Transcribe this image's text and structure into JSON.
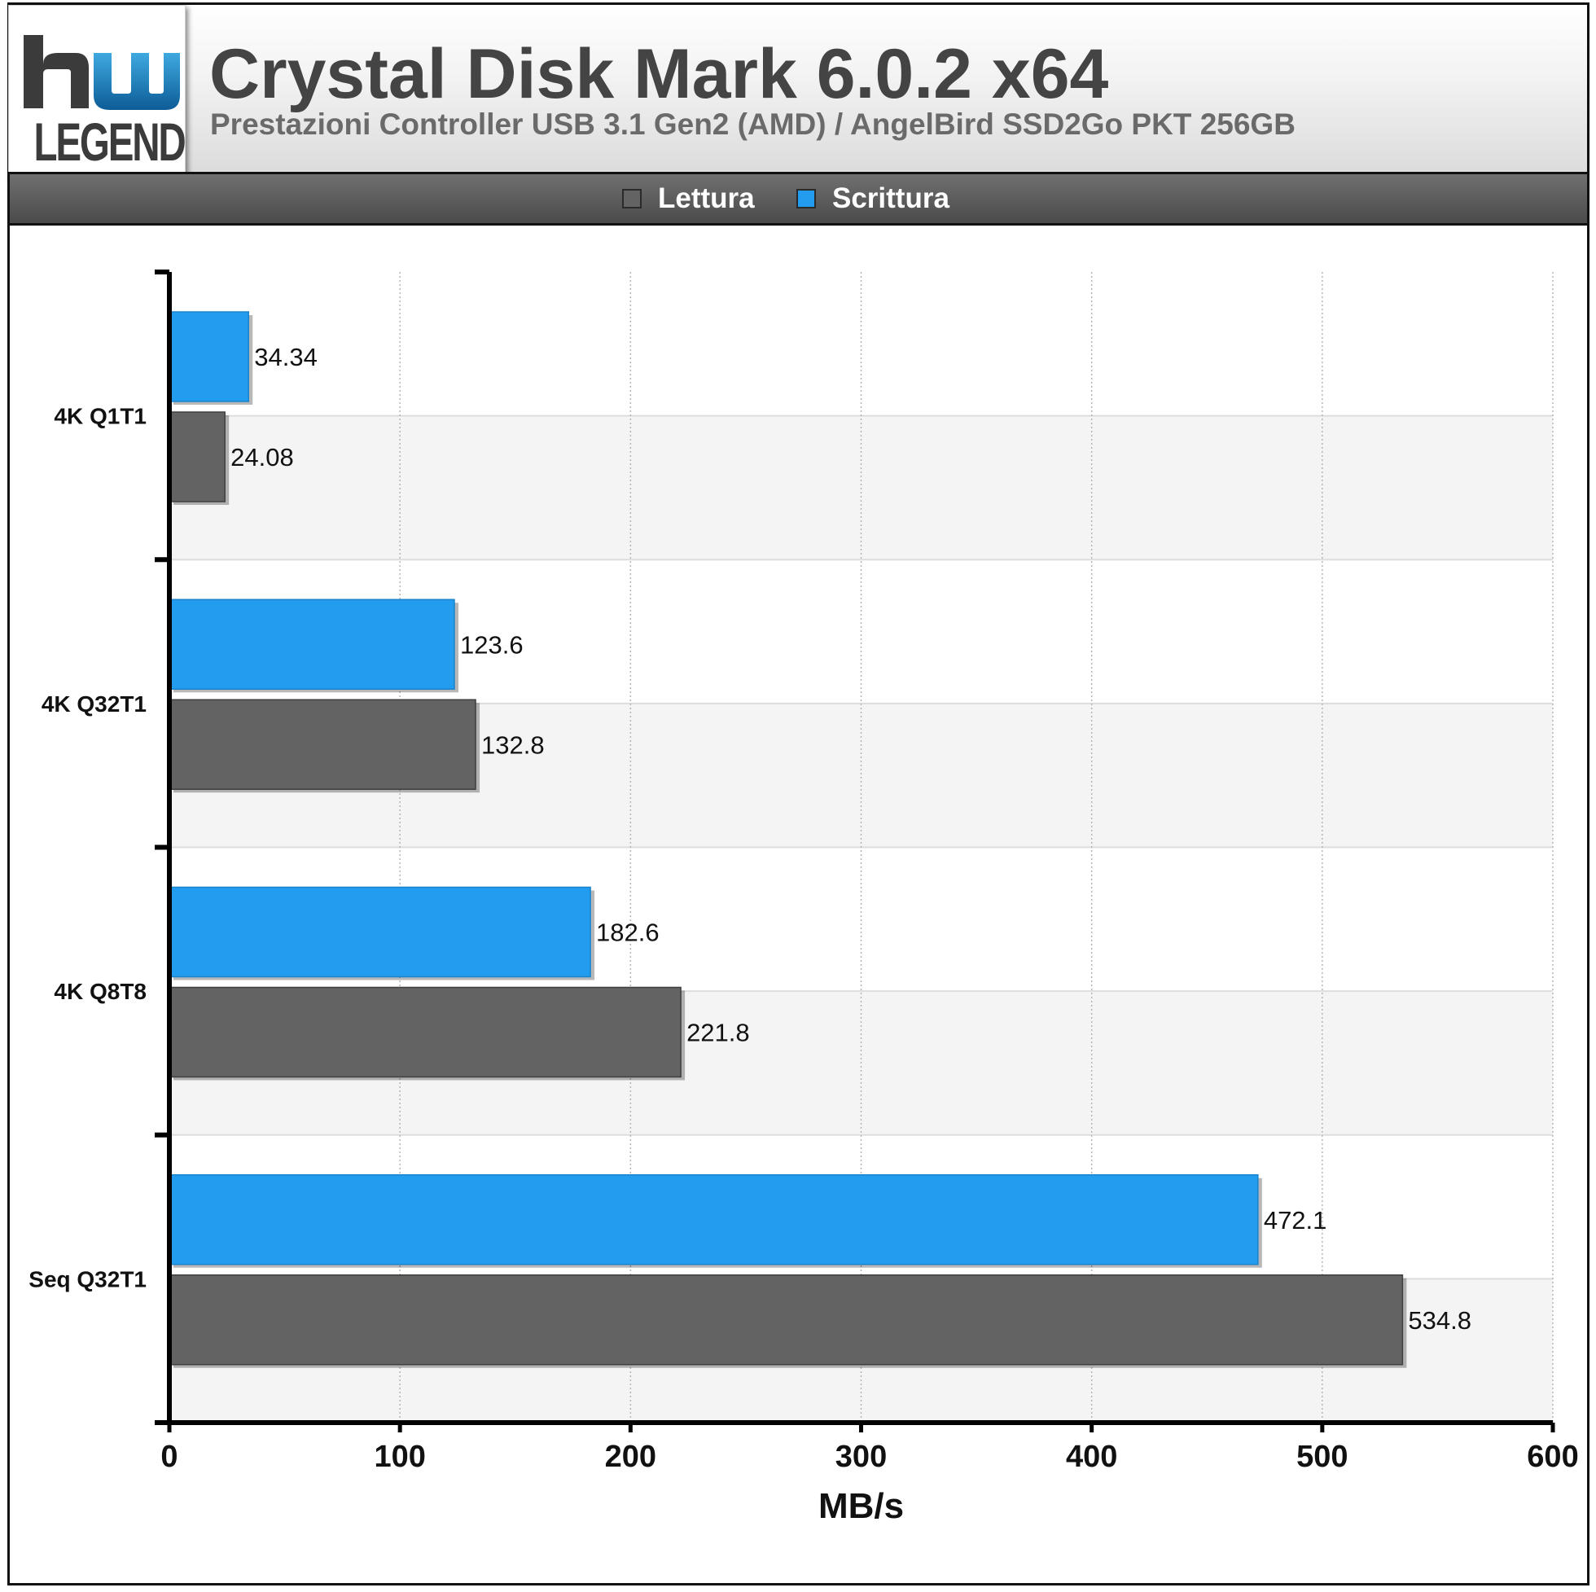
{
  "header": {
    "logo_text": "LEGEND",
    "title": "Crystal Disk Mark 6.0.2 x64",
    "subtitle": "Prestazioni Controller USB 3.1 Gen2 (AMD) / AngelBird SSD2Go PKT 256GB"
  },
  "legend": {
    "items": [
      {
        "label": "Lettura",
        "color": "#636363"
      },
      {
        "label": "Scrittura",
        "color": "#219cee"
      }
    ]
  },
  "chart_data": {
    "type": "bar",
    "orientation": "horizontal",
    "title": "Crystal Disk Mark 6.0.2 x64",
    "subtitle": "Prestazioni Controller USB 3.1 Gen2 (AMD) / AngelBird SSD2Go PKT 256GB",
    "xlabel": "MB/s",
    "ylabel": "",
    "xlim": [
      0,
      600
    ],
    "xticks": [
      0,
      100,
      200,
      300,
      400,
      500,
      600
    ],
    "grid": true,
    "legend_position": "top",
    "categories": [
      "4K Q1T1",
      "4K Q32T1",
      "4K Q8T8",
      "Seq Q32T1"
    ],
    "series": [
      {
        "name": "Scrittura",
        "color": "#219cee",
        "values": [
          34.34,
          123.6,
          182.6,
          472.1
        ],
        "labels": [
          "34.34",
          "123.6",
          "182.6",
          "472.1"
        ]
      },
      {
        "name": "Lettura",
        "color": "#636363",
        "values": [
          24.08,
          132.8,
          221.8,
          534.8
        ],
        "labels": [
          "24.08",
          "132.8",
          "221.8",
          "534.8"
        ]
      }
    ]
  }
}
